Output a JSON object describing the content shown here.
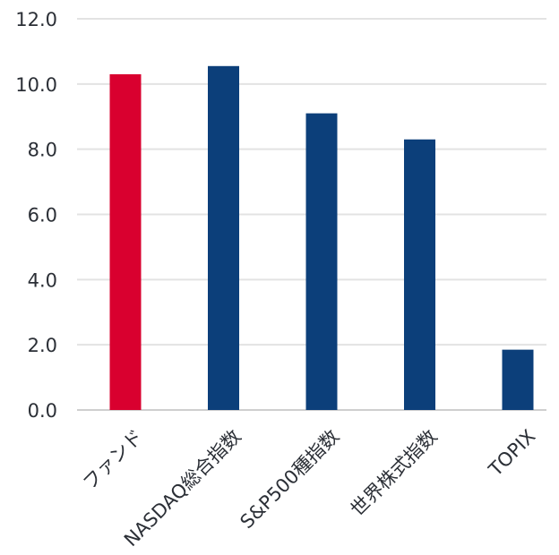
{
  "chart_data": {
    "type": "bar",
    "categories": [
      "ファンド",
      "NASDAQ総合指数",
      "S&P500種指数",
      "世界株式指数",
      "TOPIX"
    ],
    "values": [
      10.3,
      10.55,
      9.1,
      8.3,
      1.85
    ],
    "bar_colors": [
      "#d9002f",
      "#0c3f7a",
      "#0c3f7a",
      "#0c3f7a",
      "#0c3f7a"
    ],
    "yticks": [
      "0.0",
      "2.0",
      "4.0",
      "6.0",
      "8.0",
      "10.0",
      "12.0"
    ],
    "ylim": [
      0,
      12
    ],
    "grid": true,
    "title": "",
    "xlabel": "",
    "ylabel": ""
  }
}
